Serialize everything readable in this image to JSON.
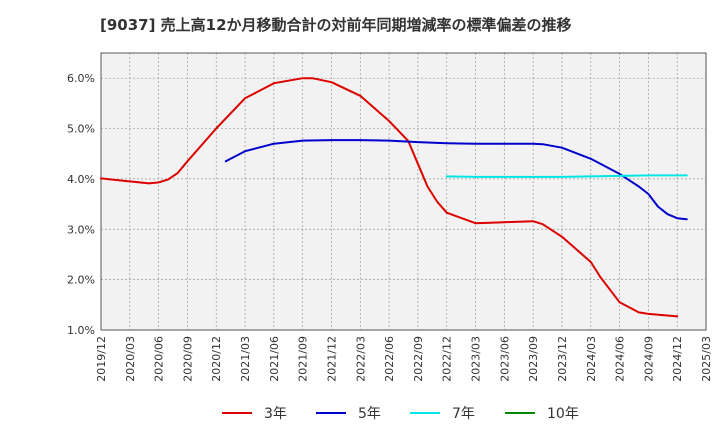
{
  "chart_data": {
    "type": "line",
    "title": "[9037]  売上高12か月移動合計の対前年同期増減率の標準偏差の推移",
    "xlabel": "",
    "ylabel": "",
    "x_ticks": [
      "2019/12",
      "2020/03",
      "2020/06",
      "2020/09",
      "2020/12",
      "2021/03",
      "2021/06",
      "2021/09",
      "2021/12",
      "2022/03",
      "2022/06",
      "2022/09",
      "2022/12",
      "2023/03",
      "2023/06",
      "2023/09",
      "2023/12",
      "2024/03",
      "2024/06",
      "2024/09",
      "2024/12",
      "2025/03"
    ],
    "y_ticks": [
      "1.0%",
      "2.0%",
      "3.0%",
      "4.0%",
      "5.0%",
      "6.0%"
    ],
    "y_values_ticks": [
      1.0,
      2.0,
      3.0,
      4.0,
      5.0,
      6.0
    ],
    "ylim": [
      1.0,
      6.5
    ],
    "grid": true,
    "legend_position": "bottom",
    "series": [
      {
        "name": "3年",
        "color": "#dd0000",
        "points": [
          [
            "2019/12",
            4.01
          ],
          [
            "2020/03",
            3.95
          ],
          [
            "2020/05",
            3.91
          ],
          [
            "2020/06",
            3.93
          ],
          [
            "2020/07",
            3.99
          ],
          [
            "2020/08",
            4.12
          ],
          [
            "2020/09",
            4.35
          ],
          [
            "2020/12",
            5.0
          ],
          [
            "2021/03",
            5.6
          ],
          [
            "2021/06",
            5.9
          ],
          [
            "2021/09",
            6.0
          ],
          [
            "2021/10",
            6.0
          ],
          [
            "2021/12",
            5.92
          ],
          [
            "2022/03",
            5.65
          ],
          [
            "2022/06",
            5.15
          ],
          [
            "2022/08",
            4.75
          ],
          [
            "2022/09",
            4.3
          ],
          [
            "2022/10",
            3.85
          ],
          [
            "2022/11",
            3.55
          ],
          [
            "2022/12",
            3.33
          ],
          [
            "2023/03",
            3.12
          ],
          [
            "2023/06",
            3.14
          ],
          [
            "2023/09",
            3.16
          ],
          [
            "2023/10",
            3.1
          ],
          [
            "2023/12",
            2.85
          ],
          [
            "2024/03",
            2.35
          ],
          [
            "2024/04",
            2.05
          ],
          [
            "2024/05",
            1.8
          ],
          [
            "2024/06",
            1.55
          ],
          [
            "2024/08",
            1.35
          ],
          [
            "2024/09",
            1.32
          ],
          [
            "2024/12",
            1.27
          ]
        ]
      },
      {
        "name": "5年",
        "color": "#0000cc",
        "points": [
          [
            "2021/01",
            4.35
          ],
          [
            "2021/03",
            4.55
          ],
          [
            "2021/06",
            4.7
          ],
          [
            "2021/09",
            4.76
          ],
          [
            "2021/12",
            4.77
          ],
          [
            "2022/03",
            4.77
          ],
          [
            "2022/06",
            4.76
          ],
          [
            "2022/09",
            4.73
          ],
          [
            "2022/12",
            4.71
          ],
          [
            "2023/03",
            4.7
          ],
          [
            "2023/06",
            4.7
          ],
          [
            "2023/09",
            4.7
          ],
          [
            "2023/10",
            4.69
          ],
          [
            "2023/12",
            4.62
          ],
          [
            "2024/03",
            4.4
          ],
          [
            "2024/06",
            4.1
          ],
          [
            "2024/08",
            3.85
          ],
          [
            "2024/09",
            3.7
          ],
          [
            "2024/10",
            3.45
          ],
          [
            "2024/11",
            3.3
          ],
          [
            "2024/12",
            3.22
          ],
          [
            "2025/01",
            3.2
          ]
        ]
      },
      {
        "name": "7年",
        "color": "#00e5e5",
        "points": [
          [
            "2022/12",
            4.05
          ],
          [
            "2023/03",
            4.04
          ],
          [
            "2023/06",
            4.04
          ],
          [
            "2023/09",
            4.04
          ],
          [
            "2023/12",
            4.04
          ],
          [
            "2024/03",
            4.05
          ],
          [
            "2024/06",
            4.06
          ],
          [
            "2024/09",
            4.07
          ],
          [
            "2024/12",
            4.07
          ],
          [
            "2025/01",
            4.07
          ]
        ]
      },
      {
        "name": "10年",
        "color": "#008800",
        "points": []
      }
    ]
  }
}
